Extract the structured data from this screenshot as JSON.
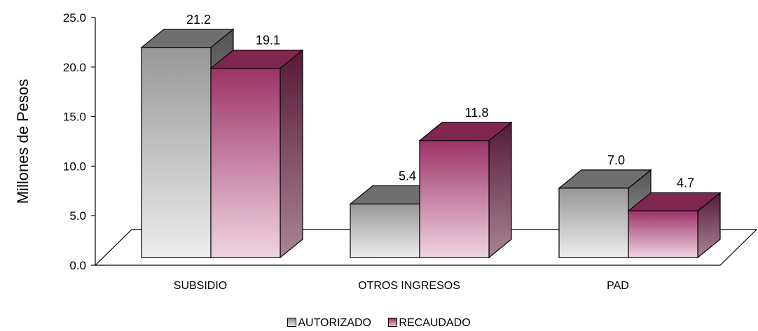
{
  "chart_data": {
    "type": "bar",
    "title": "",
    "xlabel": "",
    "ylabel": "Millones de Pesos",
    "ylim": [
      0,
      25
    ],
    "ytick_labels": [
      "0.0",
      "5.0",
      "10.0",
      "15.0",
      "20.0",
      "25.0"
    ],
    "categories": [
      "SUBSIDIO",
      "OTROS INGRESOS",
      "PAD"
    ],
    "series": [
      {
        "name": "AUTORIZADO",
        "values": [
          21.2,
          5.4,
          7.0
        ],
        "labels": [
          "21.2",
          "5.4",
          "7.0"
        ],
        "color": "#a8a8a8"
      },
      {
        "name": "RECAUDADO",
        "values": [
          19.1,
          11.8,
          4.7
        ],
        "labels": [
          "19.1",
          "11.8",
          "4.7"
        ],
        "color": "#a0386a"
      }
    ],
    "grid": false,
    "legend_position": "bottom",
    "style": "3d-clustered-bar"
  }
}
